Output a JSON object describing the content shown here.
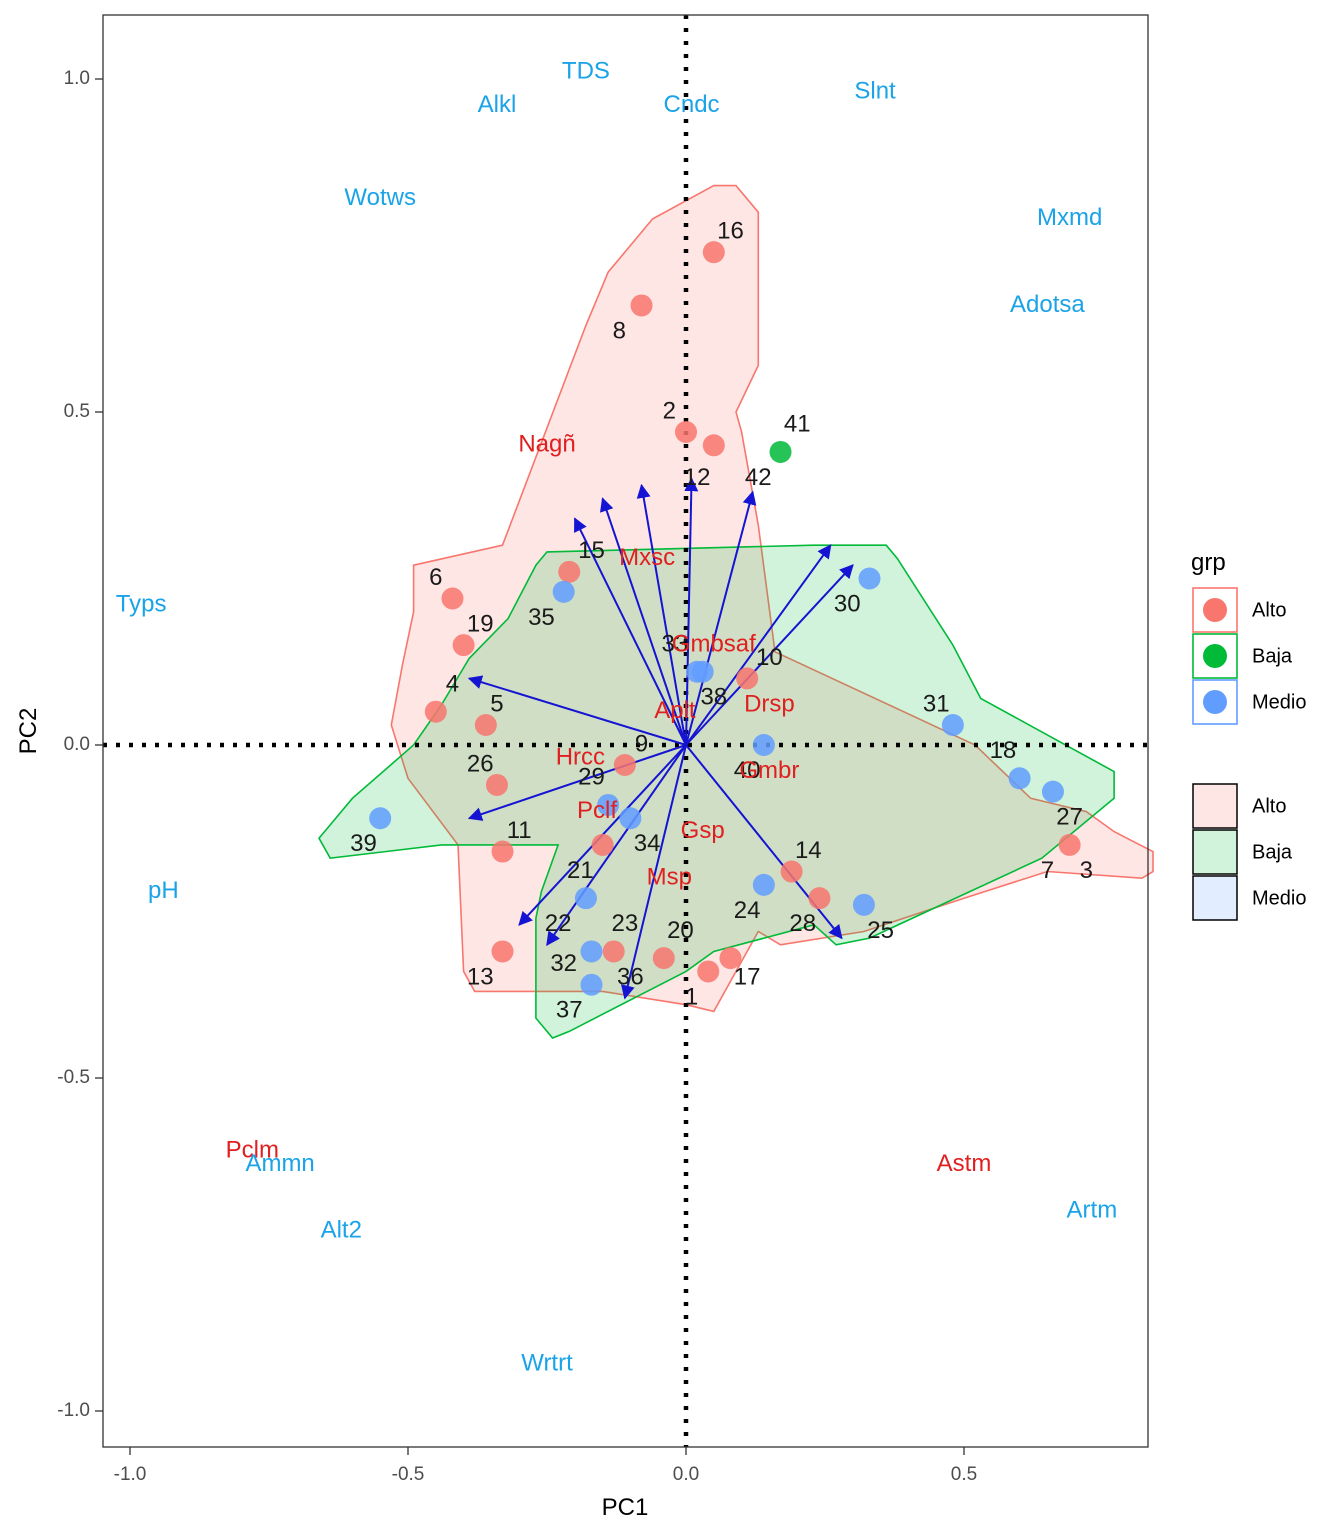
{
  "chart_data": {
    "type": "scatter",
    "xlabel": "PC1",
    "ylabel": "PC2",
    "xlim": [
      -1.06,
      0.84
    ],
    "ylim": [
      -1.05,
      1.1
    ],
    "xticks": [
      -1.0,
      -0.5,
      0.0,
      0.5
    ],
    "xtick_labels": [
      "-1.0",
      "-0.5",
      "0.0",
      "0.5"
    ],
    "yticks": [
      -1.0,
      -0.5,
      0.0,
      0.5,
      1.0
    ],
    "ytick_labels": [
      "-1.0",
      "-0.5",
      "0.0",
      "0.5",
      "1.0"
    ],
    "grid": false,
    "legend_position": "right",
    "colors": {
      "Alto": "#F8766D",
      "Baja": "#00BA38",
      "Medio": "#619CFF",
      "arrow": "#1414d2",
      "supplementary": "#1aa3e8",
      "active_var": "#e02020"
    },
    "legend": {
      "title": "grp",
      "point_items": [
        "Alto",
        "Baja",
        "Medio"
      ],
      "fill_items": [
        "Alto",
        "Baja",
        "Medio"
      ]
    },
    "hulls": [
      {
        "group": "Alto",
        "fill": "#F8766D",
        "points": [
          [
            0.09,
            0.84
          ],
          [
            0.13,
            0.8
          ],
          [
            0.13,
            0.57
          ],
          [
            0.09,
            0.5
          ],
          [
            0.1,
            0.47
          ],
          [
            0.13,
            0.33
          ],
          [
            0.16,
            0.14
          ],
          [
            0.52,
            0.0
          ],
          [
            0.62,
            -0.08
          ],
          [
            0.72,
            -0.1
          ],
          [
            0.77,
            -0.13
          ],
          [
            0.84,
            -0.16
          ],
          [
            0.84,
            -0.19
          ],
          [
            0.82,
            -0.2
          ],
          [
            0.65,
            -0.19
          ],
          [
            0.5,
            -0.23
          ],
          [
            0.32,
            -0.28
          ],
          [
            0.17,
            -0.3
          ],
          [
            0.13,
            -0.28
          ],
          [
            0.09,
            -0.34
          ],
          [
            0.05,
            -0.4
          ],
          [
            0.0,
            -0.39
          ],
          [
            -0.15,
            -0.37
          ],
          [
            -0.38,
            -0.37
          ],
          [
            -0.4,
            -0.34
          ],
          [
            -0.41,
            -0.15
          ],
          [
            -0.5,
            -0.05
          ],
          [
            -0.53,
            0.03
          ],
          [
            -0.51,
            0.12
          ],
          [
            -0.49,
            0.2
          ],
          [
            -0.49,
            0.27
          ],
          [
            -0.33,
            0.3
          ],
          [
            -0.18,
            0.63
          ],
          [
            -0.14,
            0.71
          ],
          [
            -0.06,
            0.79
          ],
          [
            0.05,
            0.84
          ]
        ]
      },
      {
        "group": "Baja",
        "fill": "#00BA38",
        "points": [
          [
            0.25,
            0.3
          ],
          [
            0.36,
            0.3
          ],
          [
            0.38,
            0.28
          ],
          [
            0.48,
            0.15
          ],
          [
            0.53,
            0.07
          ],
          [
            0.77,
            -0.04
          ],
          [
            0.77,
            -0.08
          ],
          [
            0.64,
            -0.17
          ],
          [
            0.33,
            -0.29
          ],
          [
            0.27,
            -0.3
          ],
          [
            0.23,
            -0.27
          ],
          [
            0.05,
            -0.31
          ],
          [
            0.0,
            -0.34
          ],
          [
            -0.21,
            -0.43
          ],
          [
            -0.24,
            -0.44
          ],
          [
            -0.27,
            -0.41
          ],
          [
            -0.27,
            -0.26
          ],
          [
            -0.26,
            -0.22
          ],
          [
            -0.23,
            -0.15
          ],
          [
            -0.44,
            -0.15
          ],
          [
            -0.64,
            -0.17
          ],
          [
            -0.66,
            -0.14
          ],
          [
            -0.64,
            -0.12
          ],
          [
            -0.6,
            -0.08
          ],
          [
            -0.49,
            0.0
          ],
          [
            -0.44,
            0.06
          ],
          [
            -0.39,
            0.13
          ],
          [
            -0.32,
            0.19
          ],
          [
            -0.27,
            0.27
          ],
          [
            -0.26,
            0.28
          ],
          [
            -0.25,
            0.29
          ],
          [
            0.23,
            0.3
          ]
        ]
      }
    ],
    "series": [
      {
        "name": "Alto",
        "points": [
          {
            "label": "16",
            "x": 0.05,
            "y": 0.74
          },
          {
            "label": "8",
            "x": -0.08,
            "y": 0.66
          },
          {
            "label": "2",
            "x": 0.0,
            "y": 0.47
          },
          {
            "label": "12",
            "x": 0.05,
            "y": 0.45
          },
          {
            "label": "15",
            "x": -0.21,
            "y": 0.26
          },
          {
            "label": "6",
            "x": -0.42,
            "y": 0.22
          },
          {
            "label": "19",
            "x": -0.4,
            "y": 0.15
          },
          {
            "label": "4",
            "x": -0.45,
            "y": 0.05
          },
          {
            "label": "5",
            "x": -0.36,
            "y": 0.03
          },
          {
            "label": "26",
            "x": -0.34,
            "y": -0.06
          },
          {
            "label": "11",
            "x": -0.33,
            "y": -0.16
          },
          {
            "label": "13",
            "x": -0.33,
            "y": -0.31
          },
          {
            "label": "9",
            "x": -0.11,
            "y": -0.03
          },
          {
            "label": "10",
            "x": 0.11,
            "y": 0.1
          },
          {
            "label": "21",
            "x": -0.15,
            "y": -0.15
          },
          {
            "label": "23",
            "x": -0.13,
            "y": -0.31
          },
          {
            "label": "20",
            "x": -0.04,
            "y": -0.32
          },
          {
            "label": "17",
            "x": 0.04,
            "y": -0.34
          },
          {
            "label": "1",
            "x": 0.08,
            "y": -0.32
          },
          {
            "label": "14",
            "x": 0.19,
            "y": -0.19
          },
          {
            "label": "28",
            "x": 0.24,
            "y": -0.23
          },
          {
            "label": "3",
            "x": 0.69,
            "y": -0.15
          }
        ]
      },
      {
        "name": "Baja",
        "points": [
          {
            "label": "41",
            "x": 0.17,
            "y": 0.44
          }
        ]
      },
      {
        "name": "Medio",
        "points": [
          {
            "label": "35",
            "x": -0.22,
            "y": 0.23
          },
          {
            "label": "33",
            "x": 0.02,
            "y": 0.11
          },
          {
            "label": "38",
            "x": 0.03,
            "y": 0.11
          },
          {
            "label": "40",
            "x": 0.14,
            "y": 0.0
          },
          {
            "label": "30",
            "x": 0.33,
            "y": 0.25
          },
          {
            "label": "31",
            "x": 0.48,
            "y": 0.03
          },
          {
            "label": "18",
            "x": 0.6,
            "y": -0.05
          },
          {
            "label": "27",
            "x": 0.66,
            "y": -0.07
          },
          {
            "label": "39",
            "x": -0.55,
            "y": -0.11
          },
          {
            "label": "29",
            "x": -0.14,
            "y": -0.09
          },
          {
            "label": "34",
            "x": -0.1,
            "y": -0.11
          },
          {
            "label": "22",
            "x": -0.18,
            "y": -0.23
          },
          {
            "label": "32",
            "x": -0.17,
            "y": -0.31
          },
          {
            "label": "37",
            "x": -0.17,
            "y": -0.36
          },
          {
            "label": "24",
            "x": 0.14,
            "y": -0.21
          },
          {
            "label": "25",
            "x": 0.32,
            "y": -0.24
          }
        ]
      }
    ],
    "point_labels": [
      {
        "label": "16",
        "x": 0.08,
        "y": 0.77
      },
      {
        "label": "8",
        "x": -0.12,
        "y": 0.62
      },
      {
        "label": "2",
        "x": -0.03,
        "y": 0.5
      },
      {
        "label": "41",
        "x": 0.2,
        "y": 0.48
      },
      {
        "label": "12",
        "x": 0.02,
        "y": 0.4
      },
      {
        "label": "42",
        "x": 0.13,
        "y": 0.4
      },
      {
        "label": "15",
        "x": -0.17,
        "y": 0.29
      },
      {
        "label": "6",
        "x": -0.45,
        "y": 0.25
      },
      {
        "label": "35",
        "x": -0.26,
        "y": 0.19
      },
      {
        "label": "30",
        "x": 0.29,
        "y": 0.21
      },
      {
        "label": "19",
        "x": -0.37,
        "y": 0.18
      },
      {
        "label": "33",
        "x": -0.02,
        "y": 0.15
      },
      {
        "label": "10",
        "x": 0.15,
        "y": 0.13
      },
      {
        "label": "4",
        "x": -0.42,
        "y": 0.09
      },
      {
        "label": "5",
        "x": -0.34,
        "y": 0.06
      },
      {
        "label": "38",
        "x": 0.05,
        "y": 0.07
      },
      {
        "label": "31",
        "x": 0.45,
        "y": 0.06
      },
      {
        "label": "9",
        "x": -0.08,
        "y": 0.0
      },
      {
        "label": "18",
        "x": 0.57,
        "y": -0.01
      },
      {
        "label": "26",
        "x": -0.37,
        "y": -0.03
      },
      {
        "label": "40",
        "x": 0.11,
        "y": -0.04
      },
      {
        "label": "29",
        "x": -0.17,
        "y": -0.05
      },
      {
        "label": "27",
        "x": 0.69,
        "y": -0.11
      },
      {
        "label": "11",
        "x": -0.3,
        "y": -0.13
      },
      {
        "label": "34",
        "x": -0.07,
        "y": -0.15
      },
      {
        "label": "39",
        "x": -0.58,
        "y": -0.15
      },
      {
        "label": "14",
        "x": 0.22,
        "y": -0.16
      },
      {
        "label": "21",
        "x": -0.19,
        "y": -0.19
      },
      {
        "label": "7",
        "x": 0.65,
        "y": -0.19
      },
      {
        "label": "3",
        "x": 0.72,
        "y": -0.19
      },
      {
        "label": "24",
        "x": 0.11,
        "y": -0.25
      },
      {
        "label": "22",
        "x": -0.23,
        "y": -0.27
      },
      {
        "label": "28",
        "x": 0.21,
        "y": -0.27
      },
      {
        "label": "25",
        "x": 0.35,
        "y": -0.28
      },
      {
        "label": "23",
        "x": -0.11,
        "y": -0.27
      },
      {
        "label": "20",
        "x": -0.01,
        "y": -0.28
      },
      {
        "label": "32",
        "x": -0.22,
        "y": -0.33
      },
      {
        "label": "36",
        "x": -0.1,
        "y": -0.35
      },
      {
        "label": "13",
        "x": -0.37,
        "y": -0.35
      },
      {
        "label": "17",
        "x": 0.11,
        "y": -0.35
      },
      {
        "label": "1",
        "x": 0.01,
        "y": -0.38
      },
      {
        "label": "37",
        "x": -0.21,
        "y": -0.4
      }
    ],
    "arrows": [
      {
        "x": -0.2,
        "y": 0.34
      },
      {
        "x": -0.15,
        "y": 0.37
      },
      {
        "x": -0.08,
        "y": 0.39
      },
      {
        "x": 0.01,
        "y": 0.4
      },
      {
        "x": 0.12,
        "y": 0.38
      },
      {
        "x": 0.26,
        "y": 0.3
      },
      {
        "x": 0.3,
        "y": 0.27
      },
      {
        "x": -0.39,
        "y": 0.1
      },
      {
        "x": -0.39,
        "y": -0.11
      },
      {
        "x": -0.3,
        "y": -0.27
      },
      {
        "x": -0.25,
        "y": -0.3
      },
      {
        "x": -0.11,
        "y": -0.38
      },
      {
        "x": 0.28,
        "y": -0.29
      }
    ],
    "variable_labels": [
      {
        "label": "TDS",
        "x": -0.18,
        "y": 1.01,
        "kind": "supplementary"
      },
      {
        "label": "Alkl",
        "x": -0.34,
        "y": 0.96,
        "kind": "supplementary"
      },
      {
        "label": "Cndc",
        "x": 0.01,
        "y": 0.96,
        "kind": "supplementary"
      },
      {
        "label": "Slnt",
        "x": 0.34,
        "y": 0.98,
        "kind": "supplementary"
      },
      {
        "label": "Wotws",
        "x": -0.55,
        "y": 0.82,
        "kind": "supplementary"
      },
      {
        "label": "Mxmd",
        "x": 0.69,
        "y": 0.79,
        "kind": "supplementary"
      },
      {
        "label": "Adotsa",
        "x": 0.65,
        "y": 0.66,
        "kind": "supplementary"
      },
      {
        "label": "Nagñ",
        "x": -0.25,
        "y": 0.45,
        "kind": "active"
      },
      {
        "label": "Mxsc",
        "x": -0.07,
        "y": 0.28,
        "kind": "active"
      },
      {
        "label": "Typs",
        "x": -0.98,
        "y": 0.21,
        "kind": "supplementary"
      },
      {
        "label": "Gmbsaf",
        "x": 0.05,
        "y": 0.15,
        "kind": "active"
      },
      {
        "label": "Drsp",
        "x": 0.15,
        "y": 0.06,
        "kind": "active"
      },
      {
        "label": "Aplt",
        "x": -0.02,
        "y": 0.05,
        "kind": "active"
      },
      {
        "label": "Hrcc",
        "x": -0.19,
        "y": -0.02,
        "kind": "active"
      },
      {
        "label": "Gmbr",
        "x": 0.15,
        "y": -0.04,
        "kind": "active"
      },
      {
        "label": "Pclf",
        "x": -0.16,
        "y": -0.1,
        "kind": "active"
      },
      {
        "label": "Gsp",
        "x": 0.03,
        "y": -0.13,
        "kind": "active"
      },
      {
        "label": "Msp",
        "x": -0.03,
        "y": -0.2,
        "kind": "active"
      },
      {
        "label": "pH",
        "x": -0.94,
        "y": -0.22,
        "kind": "supplementary"
      },
      {
        "label": "Pclm",
        "x": -0.78,
        "y": -0.61,
        "kind": "active"
      },
      {
        "label": "Ammn",
        "x": -0.73,
        "y": -0.63,
        "kind": "supplementary"
      },
      {
        "label": "Astm",
        "x": 0.5,
        "y": -0.63,
        "kind": "active"
      },
      {
        "label": "Artm",
        "x": 0.73,
        "y": -0.7,
        "kind": "supplementary"
      },
      {
        "label": "Alt2",
        "x": -0.62,
        "y": -0.73,
        "kind": "supplementary"
      },
      {
        "label": "Wrtrt",
        "x": -0.25,
        "y": -0.93,
        "kind": "supplementary"
      }
    ]
  }
}
